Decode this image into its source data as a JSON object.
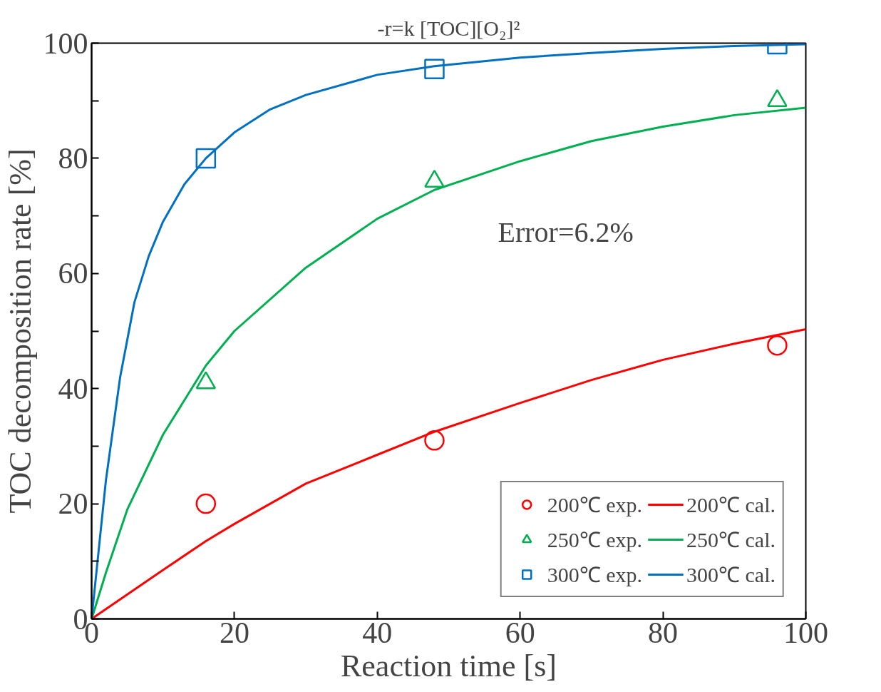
{
  "chart_data": {
    "type": "line",
    "title": "-r=k [TOC][O₂]²",
    "xlabel": "Reaction time [s]",
    "ylabel": "TOC decomposition rate [%]",
    "xlim": [
      0,
      100
    ],
    "ylim": [
      0,
      100
    ],
    "xticks": [
      0,
      20,
      40,
      60,
      80,
      100
    ],
    "yticks": [
      0,
      {
        "value": 10,
        "label": null
      },
      20,
      {
        "value": 30,
        "label": null
      },
      40,
      {
        "value": 50,
        "label": null
      },
      60,
      {
        "value": 70,
        "label": null
      },
      80,
      {
        "value": 90,
        "label": null
      },
      100
    ],
    "grid": false,
    "legend": "bottom right",
    "annotations": [
      "Error=6.2%"
    ],
    "series": [
      {
        "name": "200℃ exp.",
        "type": "scatter",
        "marker": "circle",
        "color": "#ff0000",
        "x": [
          16,
          48,
          96
        ],
        "values": [
          20,
          31,
          47.5
        ]
      },
      {
        "name": "250℃ exp.",
        "type": "scatter",
        "marker": "triangle",
        "color": "#00b050",
        "x": [
          16,
          48,
          96
        ],
        "values": [
          41,
          76,
          90
        ]
      },
      {
        "name": "300℃ exp.",
        "type": "scatter",
        "marker": "square",
        "color": "#0070c0",
        "x": [
          16,
          48,
          96
        ],
        "values": [
          80,
          95.5,
          99.8
        ]
      },
      {
        "name": "200℃ cal.",
        "line_style": "solid",
        "color": "#ff0000",
        "x": [
          0,
          10,
          16,
          20,
          30,
          40,
          48,
          60,
          70,
          80,
          90,
          100
        ],
        "values": [
          0,
          8.5,
          13.5,
          16.5,
          23.5,
          28.5,
          32.5,
          37.5,
          41.5,
          45,
          47.8,
          50.3
        ]
      },
      {
        "name": "250℃ cal.",
        "line_style": "solid",
        "color": "#00b050",
        "x": [
          0,
          2,
          5,
          10,
          16,
          20,
          30,
          40,
          48,
          60,
          70,
          80,
          90,
          100
        ],
        "values": [
          0,
          8,
          19,
          32,
          44,
          50,
          61,
          69.5,
          74.5,
          79.5,
          83,
          85.5,
          87.5,
          88.8
        ]
      },
      {
        "name": "300℃ cal.",
        "line_style": "solid",
        "color": "#0070c0",
        "x": [
          0,
          1,
          2,
          4,
          6,
          8,
          10,
          13,
          16,
          20,
          25,
          30,
          40,
          48,
          60,
          70,
          80,
          90,
          100
        ],
        "values": [
          0,
          12,
          24,
          42,
          55,
          63,
          69,
          75.5,
          80,
          84.5,
          88.5,
          91,
          94.5,
          96,
          97.5,
          98.3,
          99,
          99.5,
          99.8
        ]
      }
    ]
  }
}
